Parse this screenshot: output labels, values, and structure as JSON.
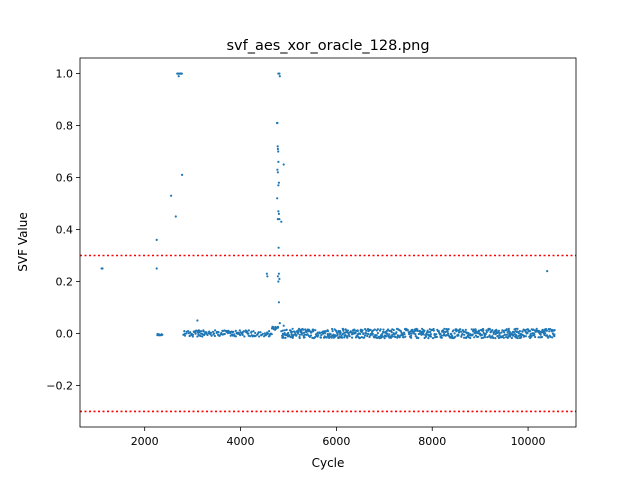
{
  "chart_data": {
    "type": "scatter",
    "title": "svf_aes_xor_oracle_128.png",
    "xlabel": "Cycle",
    "ylabel": "SVF Value",
    "xlim": [
      650,
      11000
    ],
    "ylim": [
      -0.36,
      1.06
    ],
    "xticks": [
      2000,
      4000,
      6000,
      8000,
      10000
    ],
    "xtick_labels": [
      "2000",
      "4000",
      "6000",
      "8000",
      "10000"
    ],
    "yticks": [
      -0.2,
      0.0,
      0.2,
      0.4,
      0.6,
      0.8,
      1.0
    ],
    "ytick_labels": [
      "−0.2",
      "0.0",
      "0.2",
      "0.4",
      "0.6",
      "0.8",
      "1.0"
    ],
    "grid": false,
    "colors": {
      "points": "#1f77b4",
      "threshold": "#ff0000"
    },
    "thresholds": [
      0.3,
      -0.3
    ],
    "series": [
      {
        "outliers": [
          [
            1100,
            0.25
          ],
          [
            1120,
            0.25
          ],
          [
            2250,
            0.36
          ],
          [
            2250,
            0.25
          ],
          [
            2550,
            0.53
          ],
          [
            2650,
            0.45
          ],
          [
            2780,
            0.61
          ],
          [
            2680,
            1.0
          ],
          [
            2700,
            1.0
          ],
          [
            2710,
            0.99
          ],
          [
            2720,
            1.0
          ],
          [
            2740,
            1.0
          ],
          [
            2760,
            1.0
          ],
          [
            2775,
            1.0
          ],
          [
            4550,
            0.23
          ],
          [
            4560,
            0.22
          ],
          [
            4760,
            0.81
          ],
          [
            4770,
            0.81
          ],
          [
            4775,
            0.72
          ],
          [
            4780,
            0.71
          ],
          [
            4785,
            0.7
          ],
          [
            4790,
            0.66
          ],
          [
            4770,
            0.63
          ],
          [
            4780,
            0.62
          ],
          [
            4765,
            0.52
          ],
          [
            4790,
            0.47
          ],
          [
            4800,
            0.46
          ],
          [
            4810,
            0.44
          ],
          [
            4850,
            0.43
          ],
          [
            4780,
            0.44
          ],
          [
            4790,
            0.57
          ],
          [
            4800,
            0.58
          ],
          [
            4900,
            0.65
          ],
          [
            4795,
            0.33
          ],
          [
            4780,
            0.22
          ],
          [
            4800,
            0.23
          ],
          [
            4810,
            0.21
          ],
          [
            4790,
            0.2
          ],
          [
            4800,
            0.12
          ],
          [
            4790,
            1.0
          ],
          [
            4810,
            1.0
          ],
          [
            4820,
            0.99
          ],
          [
            4820,
            0.04
          ],
          [
            4900,
            0.03
          ],
          [
            3100,
            0.05
          ],
          [
            10400,
            0.24
          ]
        ],
        "segments": [
          {
            "x_start": 2250,
            "x_end": 2350,
            "y_center": -0.005,
            "spread": 0.003,
            "step": 25
          },
          {
            "x_start": 2800,
            "x_end": 4650,
            "y_center": 0.0,
            "spread": 0.012,
            "step": 18
          },
          {
            "x_start": 4650,
            "x_end": 4780,
            "y_center": 0.02,
            "spread": 0.006,
            "step": 15
          },
          {
            "x_start": 4850,
            "x_end": 10550,
            "y_center": 0.0,
            "spread": 0.018,
            "step": 12
          }
        ]
      }
    ]
  }
}
